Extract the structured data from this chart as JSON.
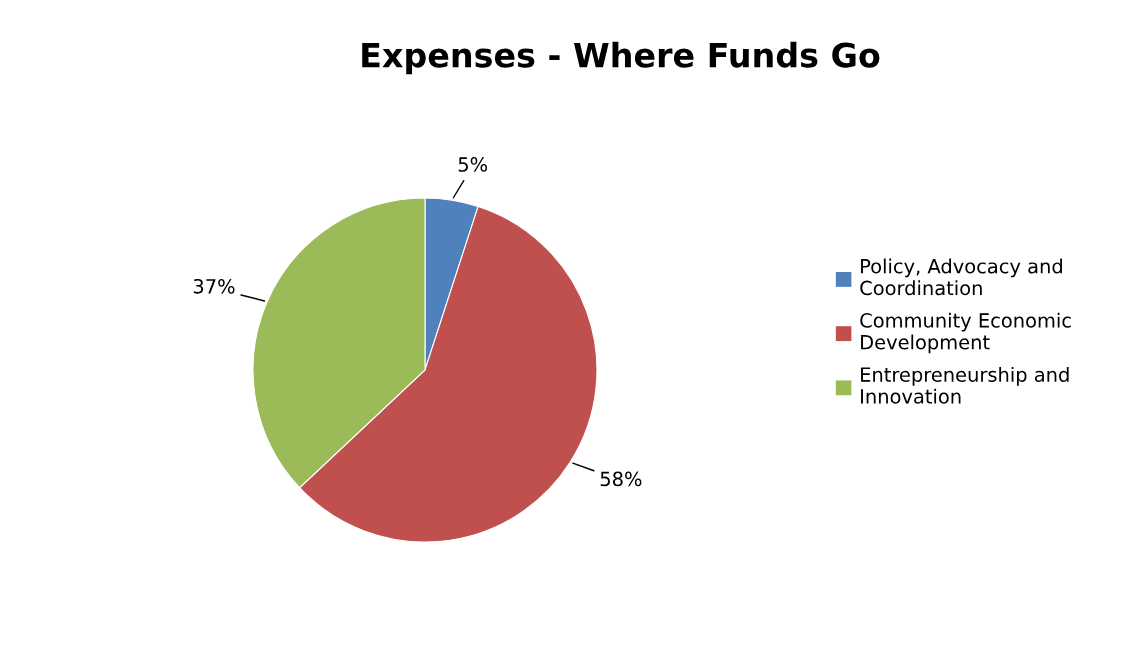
{
  "chart_data": {
    "type": "pie",
    "title": "Expenses - Where Funds Go",
    "categories": [
      "Policy, Advocacy and\nCoordination",
      "Community Economic\nDevelopment",
      "Entrepreneurship and\nInnovation"
    ],
    "values": [
      5,
      58,
      37
    ],
    "colors": [
      "#4f81bd",
      "#c0504d",
      "#9bbb59"
    ],
    "value_labels": [
      "5%",
      "58%",
      "37%"
    ],
    "legend": "right"
  }
}
